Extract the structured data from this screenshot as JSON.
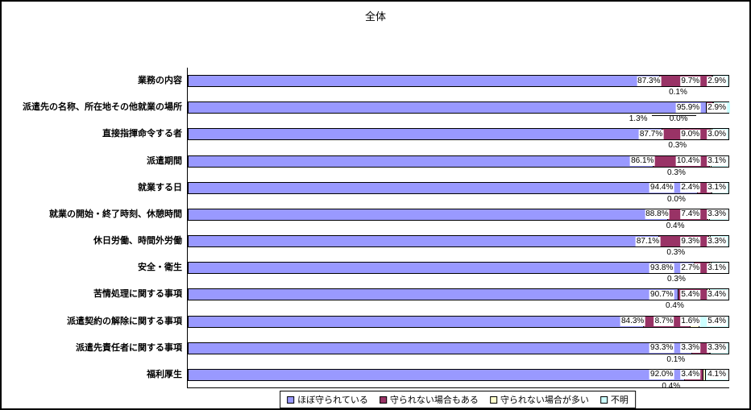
{
  "title": "全体",
  "chart_data": {
    "type": "bar",
    "orientation": "horizontal",
    "stacked": true,
    "unit": "%",
    "title": "全体",
    "xlim": [
      0,
      100
    ],
    "grid": false,
    "legend_position": "bottom",
    "categories": [
      "業務の内容",
      "派遣先の名称、所在地その他就業の場所",
      "直接指揮命令する者",
      "派遣期間",
      "就業する日",
      "就業の開始・終了時刻、休憩時間",
      "休日労働、時間外労働",
      "安全・衛生",
      "苦情処理に関する事項",
      "派遣契約の解除に関する事項",
      "派遣先責任者に関する事項",
      "福利厚生"
    ],
    "series": [
      {
        "name": "ほぼ守られている",
        "color": "#9999FF",
        "values": [
          87.3,
          95.9,
          87.7,
          86.1,
          94.4,
          88.8,
          87.1,
          93.8,
          90.7,
          84.3,
          93.3,
          92.0
        ]
      },
      {
        "name": "守られない場合もある",
        "color": "#993366",
        "values": [
          9.7,
          1.3,
          9.0,
          10.4,
          2.4,
          7.4,
          9.3,
          2.7,
          5.4,
          8.7,
          3.3,
          3.4
        ]
      },
      {
        "name": "守られない場合が多い",
        "color": "#FFFFCC",
        "values": [
          0.1,
          0.0,
          0.3,
          0.3,
          0.0,
          0.4,
          0.3,
          0.3,
          0.4,
          1.6,
          0.1,
          0.4
        ]
      },
      {
        "name": "不明",
        "color": "#CCFFFF",
        "values": [
          2.9,
          2.9,
          3.0,
          3.1,
          3.1,
          3.3,
          3.3,
          3.1,
          3.4,
          5.4,
          3.3,
          4.1
        ]
      }
    ]
  },
  "colors": {
    "background": "#FFFFFF",
    "axis": "#000000",
    "border": "#000000"
  }
}
